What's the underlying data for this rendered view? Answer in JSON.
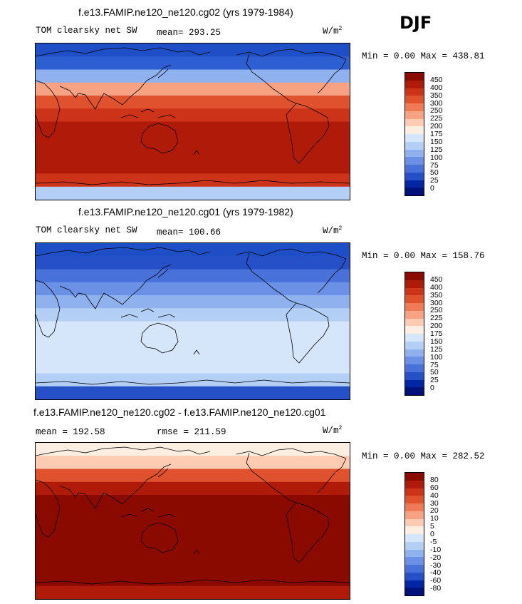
{
  "season": "DJF",
  "units_base": "W/m",
  "units_exp": "2",
  "panels": [
    {
      "title": "f.e13.FAMIP.ne120_ne120.cg02 (yrs 1979-1984)",
      "left_label": "TOM clearsky net SW",
      "center_label": "mean= 293.25",
      "minmax": "Min =    0.00 Max = 438.81",
      "colorbar_labels": [
        "450",
        "400",
        "350",
        "300",
        "250",
        "225",
        "200",
        "175",
        "150",
        "125",
        "100",
        "75",
        "50",
        "25",
        "0"
      ]
    },
    {
      "title": "f.e13.FAMIP.ne120_ne120.cg01 (yrs 1979-1982)",
      "left_label": "TOM clearsky net SW",
      "center_label": "mean= 100.66",
      "minmax": "Min =    0.00 Max = 158.76",
      "colorbar_labels": [
        "450",
        "400",
        "350",
        "300",
        "250",
        "225",
        "200",
        "175",
        "150",
        "125",
        "100",
        "75",
        "50",
        "25",
        "0"
      ]
    },
    {
      "title": "f.e13.FAMIP.ne120_ne120.cg02 - f.e13.FAMIP.ne120_ne120.cg01",
      "left_label": "mean = 192.58",
      "center_label": "rmse = 211.59",
      "minmax": "Min =    0.00 Max = 282.52",
      "colorbar_labels": [
        "80",
        "60",
        "40",
        "30",
        "20",
        "10",
        "5",
        "0",
        "-5",
        "-10",
        "-20",
        "-30",
        "-40",
        "-60",
        "-80"
      ]
    }
  ],
  "colors": {
    "scale": [
      "#8b0a00",
      "#b01a08",
      "#cc3319",
      "#e0522e",
      "#ef7a55",
      "#f7a383",
      "#fccbb1",
      "#fdeee2",
      "#d5e6fb",
      "#b3cff6",
      "#8fb2ef",
      "#6a91e6",
      "#4872da",
      "#2550c8",
      "#0026a5",
      "#00117a"
    ],
    "sw_cg02_rows": [
      "#1e4fc7",
      "#2d5fd2",
      "#8fb2ef",
      "#f7a383",
      "#e0522e",
      "#cc3319",
      "#b01a08",
      "#b01a08",
      "#b01a08",
      "#b01a08",
      "#cc3319",
      "#b3cff6"
    ],
    "sw_cg01_rows": [
      "#1e4fc7",
      "#2550c8",
      "#4872da",
      "#6a91e6",
      "#8fb2ef",
      "#b3cff6",
      "#d5e6fb",
      "#d5e6fb",
      "#d5e6fb",
      "#d5e6fb",
      "#b3cff6",
      "#2550c8"
    ],
    "diff_rows": [
      "#fdeee2",
      "#fccbb1",
      "#e0522e",
      "#b01a08",
      "#8b0a00",
      "#8b0a00",
      "#8b0a00",
      "#8b0a00",
      "#8b0a00",
      "#8b0a00",
      "#8b0a00",
      "#b01a08"
    ]
  }
}
